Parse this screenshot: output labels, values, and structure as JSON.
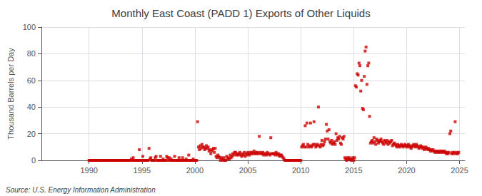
{
  "chart_data": {
    "type": "scatter",
    "title": "Monthly East Coast (PADD 1) Exports of Other Liquids",
    "ylabel": "Thousand Barrels per Day",
    "source": "Source: U.S. Energy Information Administration",
    "xlim": [
      1985.5,
      2025.5
    ],
    "ylim": [
      0,
      100
    ],
    "xticks": [
      1990,
      1995,
      2000,
      2005,
      2010,
      2015,
      2020,
      2025
    ],
    "yticks": [
      0,
      20,
      40,
      60,
      80,
      100
    ],
    "grid": true,
    "color": "#CC0000",
    "marker": "square",
    "x": [
      1990.0,
      1990.083,
      1990.167,
      1990.25,
      1990.333,
      1990.417,
      1990.5,
      1990.583,
      1990.667,
      1990.75,
      1990.833,
      1990.917,
      1991.0,
      1991.083,
      1991.167,
      1991.25,
      1991.333,
      1991.417,
      1991.5,
      1991.583,
      1991.667,
      1991.75,
      1991.833,
      1991.917,
      1992.0,
      1992.083,
      1992.167,
      1992.25,
      1992.333,
      1992.417,
      1992.5,
      1992.583,
      1992.667,
      1992.75,
      1992.833,
      1992.917,
      1993.0,
      1993.083,
      1993.167,
      1993.25,
      1993.333,
      1993.417,
      1993.5,
      1993.583,
      1993.667,
      1993.75,
      1993.833,
      1993.917,
      1994.0,
      1994.083,
      1994.167,
      1994.25,
      1994.333,
      1994.417,
      1994.5,
      1994.583,
      1994.667,
      1994.75,
      1994.833,
      1994.917,
      1995.0,
      1995.083,
      1995.167,
      1995.25,
      1995.333,
      1995.417,
      1995.5,
      1995.583,
      1995.667,
      1995.75,
      1995.833,
      1995.917,
      1996.0,
      1996.083,
      1996.167,
      1996.25,
      1996.333,
      1996.417,
      1996.5,
      1996.583,
      1996.667,
      1996.75,
      1996.833,
      1996.917,
      1997.0,
      1997.083,
      1997.167,
      1997.25,
      1997.333,
      1997.417,
      1997.5,
      1997.583,
      1997.667,
      1997.75,
      1997.833,
      1997.917,
      1998.0,
      1998.083,
      1998.167,
      1998.25,
      1998.333,
      1998.417,
      1998.5,
      1998.583,
      1998.667,
      1998.75,
      1998.833,
      1998.917,
      1999.0,
      1999.083,
      1999.167,
      1999.25,
      1999.333,
      1999.417,
      1999.5,
      1999.583,
      1999.667,
      1999.75,
      1999.833,
      1999.917,
      2000.0,
      2000.083,
      2000.167,
      2000.25,
      2000.333,
      2000.417,
      2000.5,
      2000.583,
      2000.667,
      2000.75,
      2000.833,
      2000.917,
      2001.0,
      2001.083,
      2001.167,
      2001.25,
      2001.333,
      2001.417,
      2001.5,
      2001.583,
      2001.667,
      2001.75,
      2001.833,
      2001.917,
      2002.0,
      2002.083,
      2002.167,
      2002.25,
      2002.333,
      2002.417,
      2002.5,
      2002.583,
      2002.667,
      2002.75,
      2002.833,
      2002.917,
      2003.0,
      2003.083,
      2003.167,
      2003.25,
      2003.333,
      2003.417,
      2003.5,
      2003.583,
      2003.667,
      2003.75,
      2003.833,
      2003.917,
      2004.0,
      2004.083,
      2004.167,
      2004.25,
      2004.333,
      2004.417,
      2004.5,
      2004.583,
      2004.667,
      2004.75,
      2004.833,
      2004.917,
      2005.0,
      2005.083,
      2005.167,
      2005.25,
      2005.333,
      2005.417,
      2005.5,
      2005.583,
      2005.667,
      2005.75,
      2005.833,
      2005.917,
      2006.0,
      2006.083,
      2006.167,
      2006.25,
      2006.333,
      2006.417,
      2006.5,
      2006.583,
      2006.667,
      2006.75,
      2006.833,
      2006.917,
      2007.0,
      2007.083,
      2007.167,
      2007.25,
      2007.333,
      2007.417,
      2007.5,
      2007.583,
      2007.667,
      2007.75,
      2007.833,
      2007.917,
      2008.0,
      2008.083,
      2008.167,
      2008.25,
      2008.333,
      2008.417,
      2008.5,
      2008.583,
      2008.667,
      2008.75,
      2008.833,
      2008.917,
      2009.0,
      2009.083,
      2009.167,
      2009.25,
      2009.333,
      2009.417,
      2009.5,
      2009.583,
      2009.667,
      2009.75,
      2009.833,
      2009.917,
      2010.0,
      2010.083,
      2010.167,
      2010.25,
      2010.333,
      2010.417,
      2010.5,
      2010.583,
      2010.667,
      2010.75,
      2010.833,
      2010.917,
      2011.0,
      2011.083,
      2011.167,
      2011.25,
      2011.333,
      2011.417,
      2011.5,
      2011.583,
      2011.667,
      2011.75,
      2011.833,
      2011.917,
      2012.0,
      2012.083,
      2012.167,
      2012.25,
      2012.333,
      2012.417,
      2012.5,
      2012.583,
      2012.667,
      2012.75,
      2012.833,
      2012.917,
      2013.0,
      2013.083,
      2013.167,
      2013.25,
      2013.333,
      2013.417,
      2013.5,
      2013.583,
      2013.667,
      2013.75,
      2013.833,
      2013.917,
      2014.0,
      2014.083,
      2014.167,
      2014.25,
      2014.333,
      2014.417,
      2014.5,
      2014.583,
      2014.667,
      2014.75,
      2014.833,
      2014.917,
      2015.0,
      2015.083,
      2015.167,
      2015.25,
      2015.333,
      2015.417,
      2015.5,
      2015.583,
      2015.667,
      2015.75,
      2015.833,
      2015.917,
      2016.0,
      2016.083,
      2016.167,
      2016.25,
      2016.333,
      2016.417,
      2016.5,
      2016.583,
      2016.667,
      2016.75,
      2016.833,
      2016.917,
      2017.0,
      2017.083,
      2017.167,
      2017.25,
      2017.333,
      2017.417,
      2017.5,
      2017.583,
      2017.667,
      2017.75,
      2017.833,
      2017.917,
      2018.0,
      2018.083,
      2018.167,
      2018.25,
      2018.333,
      2018.417,
      2018.5,
      2018.583,
      2018.667,
      2018.75,
      2018.833,
      2018.917,
      2019.0,
      2019.083,
      2019.167,
      2019.25,
      2019.333,
      2019.417,
      2019.5,
      2019.583,
      2019.667,
      2019.75,
      2019.833,
      2019.917,
      2020.0,
      2020.083,
      2020.167,
      2020.25,
      2020.333,
      2020.417,
      2020.5,
      2020.583,
      2020.667,
      2020.75,
      2020.833,
      2020.917,
      2021.0,
      2021.083,
      2021.167,
      2021.25,
      2021.333,
      2021.417,
      2021.5,
      2021.583,
      2021.667,
      2021.75,
      2021.833,
      2021.917,
      2022.0,
      2022.083,
      2022.167,
      2022.25,
      2022.333,
      2022.417,
      2022.5,
      2022.583,
      2022.667,
      2022.75,
      2022.833,
      2022.917,
      2023.0,
      2023.083,
      2023.167,
      2023.25,
      2023.333,
      2023.417,
      2023.5,
      2023.583,
      2023.667,
      2023.75,
      2023.833,
      2023.917,
      2024.0,
      2024.083,
      2024.167,
      2024.25,
      2024.333,
      2024.417,
      2024.5,
      2024.583,
      2024.667,
      2024.75,
      2024.833,
      2024.917
    ],
    "values": [
      0,
      0,
      0,
      0,
      0,
      0,
      0,
      0,
      0,
      0,
      0,
      0,
      0,
      0,
      0,
      0,
      0,
      0,
      0,
      0,
      0,
      0,
      0,
      0,
      0,
      0,
      0,
      0,
      0,
      0,
      0,
      0,
      0,
      0,
      0,
      0,
      0,
      0,
      0,
      0,
      0,
      0,
      0,
      0,
      0,
      0,
      0,
      0,
      1,
      0,
      2,
      0,
      0,
      0,
      0,
      0,
      0,
      8,
      0,
      0,
      0,
      3,
      0,
      0,
      0,
      0,
      0,
      0,
      9,
      1,
      2,
      0,
      0,
      0,
      0,
      2,
      3,
      0,
      0,
      0,
      0,
      3,
      0,
      0,
      1,
      0,
      0,
      0,
      3,
      2,
      0,
      2,
      0,
      1,
      0,
      0,
      0,
      3,
      0,
      0,
      0,
      0,
      2,
      0,
      0,
      0,
      2,
      0,
      0,
      0,
      1,
      0,
      0,
      4,
      0,
      0,
      0,
      0,
      1,
      0,
      0,
      0,
      0,
      29,
      10,
      8,
      11,
      9,
      12,
      10,
      10,
      8,
      9,
      11,
      9,
      10,
      7,
      8,
      5,
      7,
      8,
      9,
      6,
      9,
      3,
      2,
      4,
      3,
      2,
      0,
      2,
      1,
      0,
      2,
      0,
      0,
      3,
      1,
      2,
      1,
      4,
      2,
      3,
      5,
      4,
      6,
      6,
      4,
      5,
      4,
      5,
      6,
      4,
      3,
      5,
      4,
      6,
      3,
      5,
      4,
      6,
      5,
      4,
      6,
      5,
      6,
      5,
      7,
      5,
      6,
      5,
      6,
      5,
      18,
      6,
      5,
      5,
      6,
      4,
      5,
      5,
      4,
      6,
      5,
      5,
      4,
      17,
      5,
      5,
      5,
      5,
      4,
      6,
      5,
      4,
      5,
      3,
      4,
      4,
      3,
      2,
      1,
      0,
      0,
      0,
      0,
      0,
      0,
      0,
      0,
      0,
      0,
      0,
      0,
      0,
      0,
      0,
      0,
      0,
      0,
      0,
      10,
      11,
      12,
      10,
      26,
      10,
      28,
      12,
      10,
      11,
      28,
      10,
      11,
      12,
      29,
      12,
      10,
      11,
      12,
      40,
      11,
      10,
      12,
      15,
      11,
      12,
      14,
      16,
      27,
      22,
      16,
      23,
      14,
      13,
      15,
      12,
      13,
      14,
      12,
      20,
      15,
      17,
      16,
      18,
      13,
      12,
      17,
      16,
      18,
      2,
      1,
      0,
      2,
      1,
      2,
      1,
      0,
      1,
      2,
      0,
      2,
      56,
      55,
      65,
      64,
      73,
      71,
      52,
      60,
      39,
      38,
      63,
      82,
      85,
      57,
      71,
      73,
      33,
      13,
      14,
      15,
      13,
      17,
      14,
      12,
      16,
      15,
      13,
      14,
      15,
      16,
      14,
      13,
      12,
      15,
      14,
      13,
      15,
      12,
      14,
      13,
      14,
      15,
      11,
      12,
      13,
      12,
      11,
      10,
      12,
      11,
      10,
      11,
      12,
      11,
      10,
      11,
      12,
      11,
      10,
      11,
      12,
      10,
      11,
      9,
      10,
      11,
      12,
      11,
      10,
      12,
      11,
      10,
      9,
      10,
      11,
      10,
      9,
      10,
      8,
      9,
      10,
      9,
      8,
      9,
      8,
      7,
      8,
      7,
      8,
      7,
      6,
      7,
      6,
      7,
      6,
      7,
      6,
      7,
      6,
      7,
      6,
      7,
      6,
      5,
      6,
      5,
      6,
      20,
      22,
      5,
      6,
      5,
      6,
      29,
      5,
      6,
      5,
      6
    ]
  }
}
